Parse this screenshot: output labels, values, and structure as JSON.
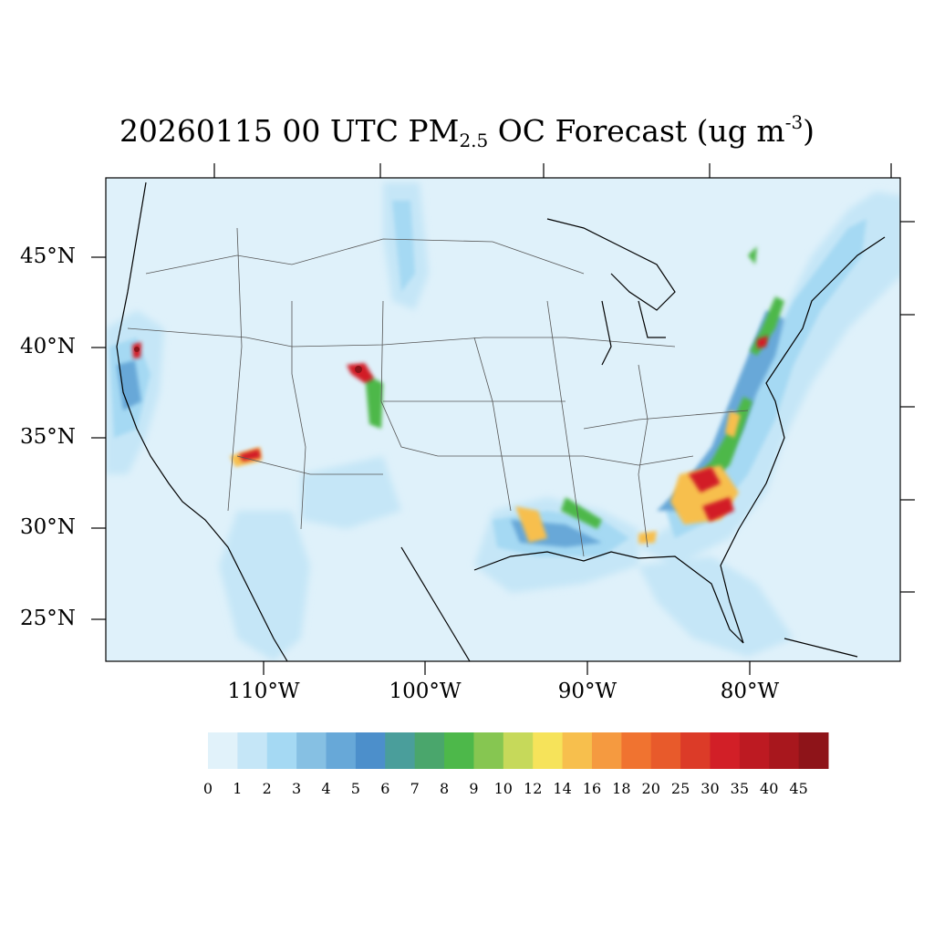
{
  "title": {
    "prefix": "20260115 00 UTC PM",
    "sub": "2.5",
    "middle": " OC Forecast (ug m",
    "sup": "-3",
    "suffix": ")"
  },
  "map": {
    "lat_labels": [
      "45°N",
      "40°N",
      "35°N",
      "30°N",
      "25°N"
    ],
    "lon_labels": [
      "110°W",
      "100°W",
      "90°W",
      "80°W"
    ],
    "background_color": "#dff1fa"
  },
  "colorbar": {
    "labels": [
      "0",
      "1",
      "2",
      "3",
      "4",
      "5",
      "6",
      "7",
      "8",
      "9",
      "10",
      "12",
      "14",
      "16",
      "18",
      "20",
      "25",
      "30",
      "35",
      "40",
      "45"
    ],
    "colors": [
      "#e1f2fa",
      "#c5e6f7",
      "#a5d9f3",
      "#86c0e3",
      "#67a8d8",
      "#4c8fcb",
      "#4a9e9b",
      "#4aa66c",
      "#4db84a",
      "#86c651",
      "#c6d95a",
      "#f6e35a",
      "#f7bf4d",
      "#f59a40",
      "#f07330",
      "#e85a2b",
      "#dc3b28",
      "#d21f27",
      "#bd1a22",
      "#a8171d",
      "#8e1419"
    ]
  }
}
